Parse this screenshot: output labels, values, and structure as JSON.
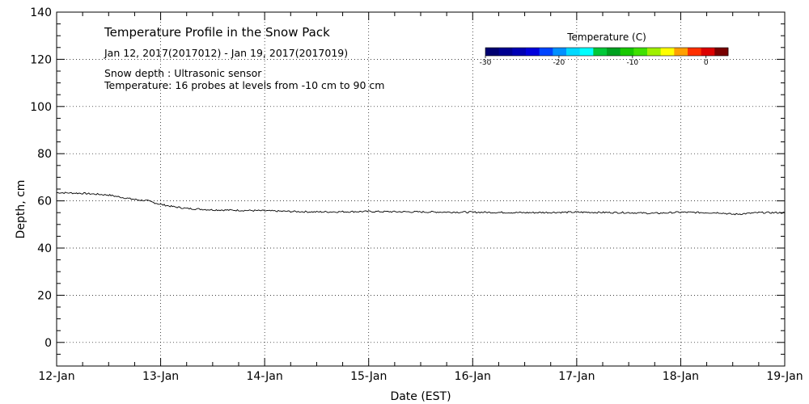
{
  "chart_data": {
    "type": "line",
    "title": "Temperature Profile in the Snow Pack",
    "date_range": "Jan 12, 2017(2017012) - Jan 19, 2017(2017019)",
    "note_depth": "Snow depth : Ultrasonic sensor",
    "note_temperature": "Temperature: 16 probes at levels from -10 cm to 90 cm",
    "xlabel": "Date (EST)",
    "ylabel": "Depth, cm",
    "x_ticks": [
      "12-Jan",
      "13-Jan",
      "14-Jan",
      "15-Jan",
      "16-Jan",
      "17-Jan",
      "18-Jan",
      "19-Jan"
    ],
    "xlim_days": [
      12,
      19
    ],
    "ylim": [
      -10,
      140
    ],
    "y_ticks": [
      0,
      20,
      40,
      60,
      80,
      100,
      120,
      140
    ],
    "grid": true,
    "series": [
      {
        "color": "#000000",
        "x": [
          "2017-01-12 00:00",
          "2017-01-12 06:00",
          "2017-01-12 12:00",
          "2017-01-12 15:00",
          "2017-01-12 18:00",
          "2017-01-12 21:00",
          "2017-01-13 00:00",
          "2017-01-13 03:00",
          "2017-01-13 06:00",
          "2017-01-13 12:00",
          "2017-01-13 18:00",
          "2017-01-14 00:00",
          "2017-01-14 06:00",
          "2017-01-14 12:00",
          "2017-01-14 18:00",
          "2017-01-15 00:00",
          "2017-01-15 12:00",
          "2017-01-16 00:00",
          "2017-01-16 12:00",
          "2017-01-17 00:00",
          "2017-01-17 12:00",
          "2017-01-17 18:00",
          "2017-01-18 00:00",
          "2017-01-18 06:00",
          "2017-01-18 09:00",
          "2017-01-18 12:00",
          "2017-01-18 15:00",
          "2017-01-18 18:00",
          "2017-01-19 00:00"
        ],
        "y": [
          63.5,
          63.2,
          62.5,
          61.5,
          60.6,
          60.0,
          58.5,
          57.5,
          56.8,
          56.2,
          56.0,
          55.8,
          55.5,
          55.3,
          55.4,
          55.5,
          55.3,
          55.2,
          55.0,
          55.2,
          55.0,
          54.7,
          55.2,
          55.0,
          55.0,
          54.3,
          54.6,
          55.0,
          55.0
        ]
      }
    ]
  },
  "colorbar": {
    "title": "Temperature (C)",
    "tick_labels": [
      "-30",
      "-20",
      "-10",
      "0"
    ],
    "tick_values": [
      -30,
      -20,
      -10,
      0
    ],
    "range": [
      -30,
      3
    ],
    "colors": [
      "#000070",
      "#000090",
      "#0000b4",
      "#0000dc",
      "#0044ff",
      "#0090ff",
      "#00d8ff",
      "#00ffff",
      "#00c838",
      "#00a020",
      "#18c800",
      "#40e000",
      "#a0f000",
      "#ffff00",
      "#ffa000",
      "#ff3000",
      "#dc0000",
      "#780000"
    ]
  }
}
